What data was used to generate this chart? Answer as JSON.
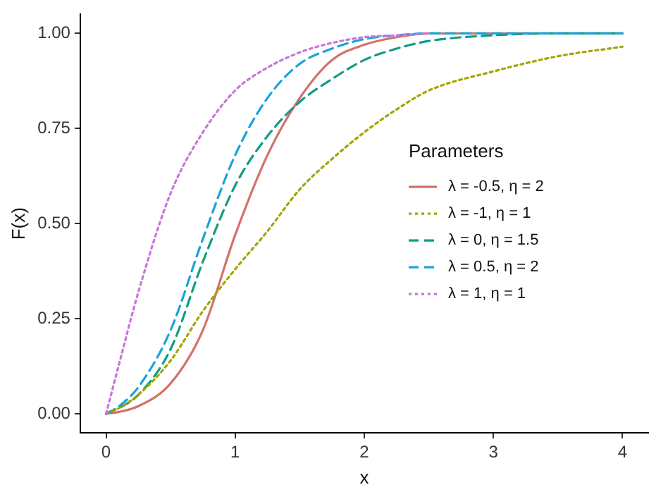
{
  "chart_data": {
    "type": "line",
    "xlabel": "x",
    "ylabel": "F(x)",
    "legend_title": "Parameters",
    "legend": "right",
    "grid": false,
    "marker": "none",
    "xlim": [
      -0.2,
      4.2
    ],
    "xticks": [
      0,
      1,
      2,
      3,
      4
    ],
    "ylim": [
      -0.05,
      1.05
    ],
    "yticks": [
      {
        "value": 0,
        "label": "0.00"
      },
      {
        "value": 0.25,
        "label": "0.25"
      },
      {
        "value": 0.5,
        "label": "0.50"
      },
      {
        "value": 0.75,
        "label": "0.75"
      },
      {
        "value": 1,
        "label": "1.00"
      }
    ],
    "x": [
      0,
      0.1,
      0.25,
      0.5,
      0.75,
      1,
      1.25,
      1.5,
      1.75,
      2,
      2.25,
      2.5,
      3,
      3.5,
      4
    ],
    "series": [
      {
        "name": "λ = -0.5, η = 2",
        "color": "#d0736b",
        "line_style": "solid",
        "values": [
          0,
          0.005,
          0.02,
          0.08,
          0.22,
          0.47,
          0.68,
          0.83,
          0.93,
          0.97,
          0.99,
          1,
          1,
          1,
          1
        ]
      },
      {
        "name": "λ = -1, η = 1",
        "color": "#a3a500",
        "line_style": "dotted",
        "values": [
          0,
          0.015,
          0.05,
          0.14,
          0.27,
          0.38,
          0.48,
          0.59,
          0.67,
          0.74,
          0.8,
          0.85,
          0.9,
          0.94,
          0.965
        ]
      },
      {
        "name": "λ = 0, η = 1.5",
        "color": "#119c84",
        "line_style": "dashed",
        "values": [
          0,
          0.015,
          0.05,
          0.17,
          0.4,
          0.6,
          0.73,
          0.82,
          0.88,
          0.93,
          0.96,
          0.98,
          0.995,
          1,
          1
        ]
      },
      {
        "name": "λ = 0.5, η = 2",
        "color": "#1aa3d8",
        "line_style": "dashed",
        "values": [
          0,
          0.02,
          0.07,
          0.22,
          0.46,
          0.68,
          0.83,
          0.92,
          0.96,
          0.985,
          0.995,
          1,
          1,
          1,
          1
        ]
      },
      {
        "name": "λ = 1, η = 1",
        "color": "#c777d8",
        "line_style": "dotted",
        "values": [
          0,
          0.13,
          0.32,
          0.58,
          0.74,
          0.85,
          0.91,
          0.95,
          0.975,
          0.99,
          0.995,
          1,
          null,
          null,
          null
        ]
      }
    ]
  }
}
